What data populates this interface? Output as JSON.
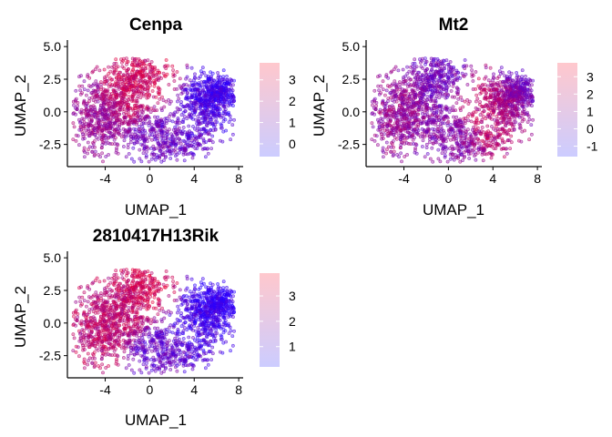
{
  "chart_data": [
    {
      "type": "scatter",
      "title": "Cenpa",
      "xlabel": "UMAP_1",
      "ylabel": "UMAP_2",
      "xlim": [
        -7.4,
        8.4
      ],
      "ylim": [
        -4.2,
        5.5
      ],
      "xticks": [
        "-4",
        "0",
        "4",
        "8"
      ],
      "yticks": [
        "-2.5",
        "0.0",
        "2.5",
        "5.0"
      ],
      "grid": false,
      "legend": {
        "placement": "right",
        "type": "colorbar",
        "range": [
          -0.6,
          3.8
        ],
        "ticks": [
          "0",
          "1",
          "2",
          "3"
        ],
        "low_color": "#CCCCFF",
        "high_color": "#FFC8CD"
      },
      "point_colors": {
        "low": "#2A00FF",
        "high": "#E8003A"
      },
      "regions": [
        {
          "x": 0.0,
          "y": 3.0,
          "level": 0.85
        },
        {
          "x": -2.0,
          "y": 2.2,
          "level": 0.8
        },
        {
          "x": -5.5,
          "y": -0.5,
          "level": 0.55
        },
        {
          "x": 6.0,
          "y": 1.5,
          "level": 0.1
        },
        {
          "x": 4.0,
          "y": -1.5,
          "level": 0.25
        },
        {
          "x": 1.0,
          "y": -2.5,
          "level": 0.35
        }
      ]
    },
    {
      "type": "scatter",
      "title": "Mt2",
      "xlabel": "UMAP_1",
      "ylabel": "UMAP_2",
      "xlim": [
        -7.4,
        8.4
      ],
      "ylim": [
        -4.2,
        5.5
      ],
      "xticks": [
        "-4",
        "0",
        "4",
        "8"
      ],
      "yticks": [
        "-2.5",
        "0.0",
        "2.5",
        "5.0"
      ],
      "grid": false,
      "legend": {
        "placement": "right",
        "type": "colorbar",
        "range": [
          -1.6,
          3.8
        ],
        "ticks": [
          "-1",
          "0",
          "1",
          "2",
          "3"
        ],
        "low_color": "#CCCCFF",
        "high_color": "#FFC8CD"
      },
      "point_colors": {
        "low": "#2A00FF",
        "high": "#E8003A"
      },
      "regions": [
        {
          "x": 3.5,
          "y": 0.2,
          "level": 0.8
        },
        {
          "x": 5.0,
          "y": 0.5,
          "level": 0.65
        },
        {
          "x": -4.5,
          "y": 0.5,
          "level": 0.55
        },
        {
          "x": -1.0,
          "y": 3.2,
          "level": 0.35
        },
        {
          "x": 6.5,
          "y": 1.8,
          "level": 0.3
        },
        {
          "x": 0.0,
          "y": -2.0,
          "level": 0.45
        }
      ]
    },
    {
      "type": "scatter",
      "title": "2810417H13Rik",
      "xlabel": "UMAP_1",
      "ylabel": "UMAP_2",
      "xlim": [
        -7.4,
        8.4
      ],
      "ylim": [
        -4.2,
        5.5
      ],
      "xticks": [
        "-4",
        "0",
        "4",
        "8"
      ],
      "yticks": [
        "-2.5",
        "0.0",
        "2.5",
        "5.0"
      ],
      "grid": false,
      "legend": {
        "placement": "right",
        "type": "colorbar",
        "range": [
          0.2,
          3.9
        ],
        "ticks": [
          "1",
          "2",
          "3"
        ],
        "low_color": "#CCCCFF",
        "high_color": "#FFC8CD"
      },
      "point_colors": {
        "low": "#2A00FF",
        "high": "#E8003A"
      },
      "regions": [
        {
          "x": -0.5,
          "y": 3.0,
          "level": 0.9
        },
        {
          "x": -2.5,
          "y": 2.0,
          "level": 0.75
        },
        {
          "x": -5.5,
          "y": -0.8,
          "level": 0.75
        },
        {
          "x": 6.0,
          "y": 1.5,
          "level": 0.05
        },
        {
          "x": 4.0,
          "y": -1.0,
          "level": 0.15
        },
        {
          "x": 1.5,
          "y": -2.5,
          "level": 0.3
        }
      ]
    }
  ]
}
